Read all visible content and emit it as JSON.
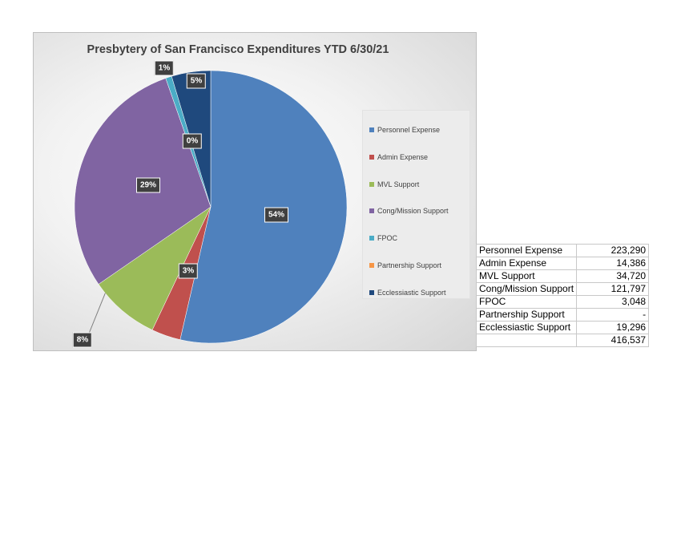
{
  "chart_data": {
    "type": "pie",
    "title": "Presbytery of San Francisco Expenditures  YTD 6/30/21",
    "categories": [
      "Personnel Expense",
      "Admin Expense",
      "MVL Support",
      "Cong/Mission Support",
      "FPOC",
      "Partnership Support",
      "Ecclessiastic Support"
    ],
    "values": [
      223290,
      14386,
      34720,
      121797,
      3048,
      0,
      19296
    ],
    "percent_labels": [
      "54%",
      "3%",
      "8%",
      "29%",
      "1%",
      "0%",
      "5%"
    ],
    "colors": [
      "#4F81BD",
      "#C0504D",
      "#9BBB59",
      "#8064A2",
      "#4BACC6",
      "#F79646",
      "#1F497D"
    ],
    "legend_position": "right"
  },
  "table": {
    "rows": [
      {
        "label": "Personnel Expense",
        "value": "223,290"
      },
      {
        "label": "Admin Expense",
        "value": "14,386"
      },
      {
        "label": "MVL Support",
        "value": "34,720"
      },
      {
        "label": "Cong/Mission Support",
        "value": "121,797"
      },
      {
        "label": "FPOC",
        "value": "3,048"
      },
      {
        "label": "Partnership Support",
        "value": "-"
      },
      {
        "label": "Ecclessiastic Support",
        "value": "19,296"
      },
      {
        "label": "",
        "value": "416,537"
      }
    ]
  }
}
